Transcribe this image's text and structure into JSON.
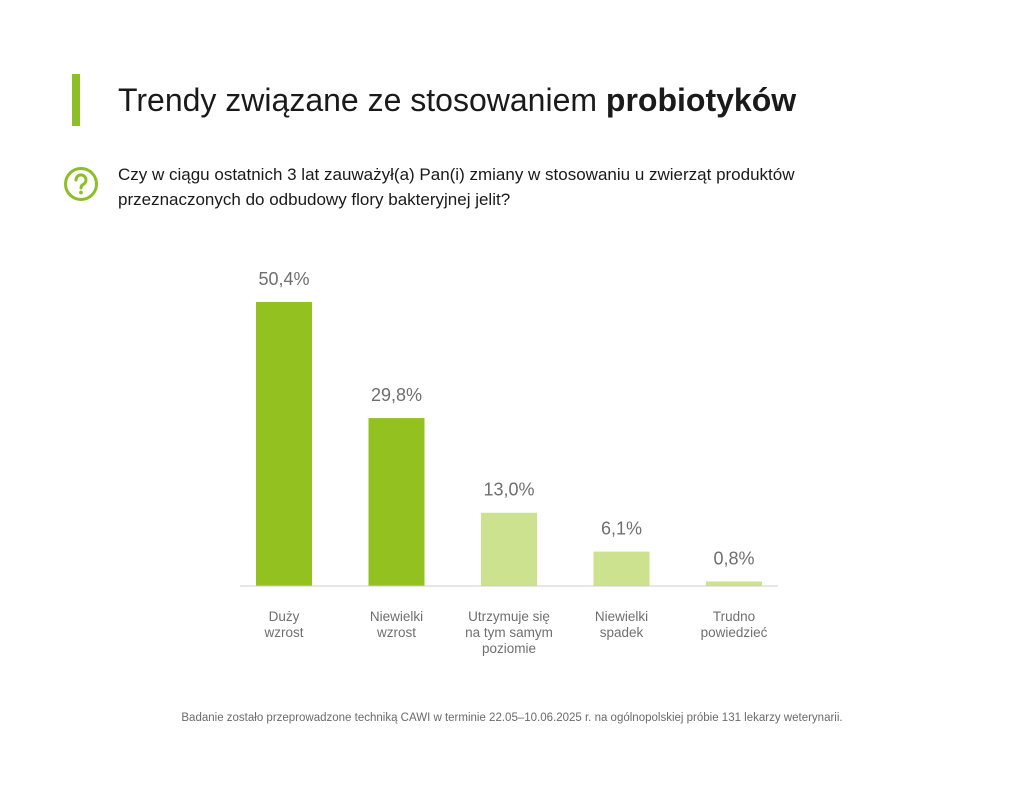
{
  "header": {
    "title_regular": "Trendy związane ze stosowaniem ",
    "title_bold": "probiotyków",
    "question": "Czy w ciągu ostatnich 3 lat zauważył(a) Pan(i) zmiany w stosowaniu u zwierząt produktów przeznaczonych do odbudowy flory bakteryjnej jelit?"
  },
  "colors": {
    "accent": "#8cbf26",
    "bar_dark": "#93c11f",
    "bar_light": "#cde28e",
    "axis": "#cccccc",
    "value_text": "#6f6f6f",
    "category_text": "#6f6f6f"
  },
  "chart_data": {
    "type": "bar",
    "categories": [
      [
        "Duży",
        "wzrost"
      ],
      [
        "Niewielki",
        "wzrost"
      ],
      [
        "Utrzymuje się",
        "na tym samym",
        "poziomie"
      ],
      [
        "Niewielki",
        "spadek"
      ],
      [
        "Trudno",
        "powiedzieć"
      ]
    ],
    "values": [
      50.4,
      29.8,
      13.0,
      6.1,
      0.8
    ],
    "value_labels": [
      "50,4%",
      "29,8%",
      "13,0%",
      "6,1%",
      "0,8%"
    ],
    "bar_shades": [
      "dark",
      "dark",
      "light",
      "light",
      "light"
    ],
    "ylim": [
      0,
      50.4
    ],
    "grid": false
  },
  "footnote": "Badanie zostało przeprowadzone techniką CAWI w terminie 22.05–10.06.2025 r. na ogólnopolskiej próbie 131 lekarzy weterynarii."
}
